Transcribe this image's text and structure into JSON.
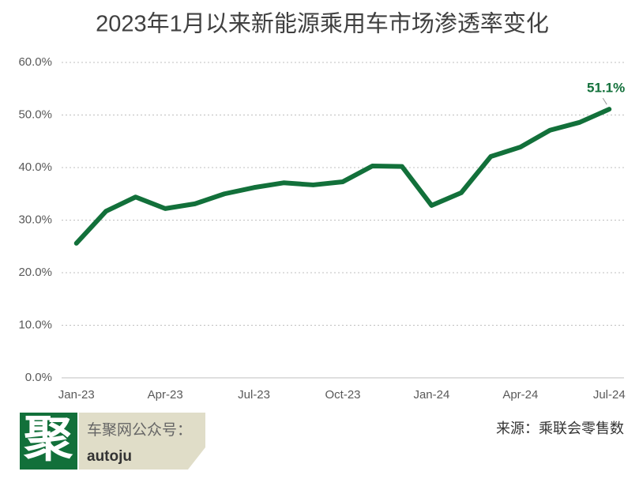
{
  "chart_data": {
    "type": "line",
    "title": "2023年1月以来新能源乘用车市场渗透率变化",
    "categories": [
      "Jan-23",
      null,
      null,
      "Apr-23",
      null,
      null,
      "Jul-23",
      null,
      null,
      "Oct-23",
      null,
      null,
      "Jan-24",
      null,
      null,
      "Apr-24",
      null,
      null,
      "Jul-24"
    ],
    "series": [
      {
        "name": "新能源乘用车市场渗透率",
        "color": "#12703a",
        "values": [
          25.6,
          31.7,
          34.4,
          32.2,
          33.1,
          35.0,
          36.2,
          37.1,
          36.7,
          37.3,
          40.3,
          40.2,
          32.8,
          35.2,
          42.1,
          43.9,
          47.1,
          48.6,
          51.1
        ],
        "value_labels": [
          null,
          null,
          null,
          null,
          null,
          null,
          null,
          null,
          null,
          null,
          null,
          null,
          null,
          null,
          null,
          null,
          null,
          null,
          "51.1%"
        ]
      }
    ],
    "ylim": [
      0,
      60
    ],
    "yticks": [
      {
        "value": 0,
        "label": "0.0%"
      },
      {
        "value": 10,
        "label": "10.0%"
      },
      {
        "value": 20,
        "label": "20.0%"
      },
      {
        "value": 30,
        "label": "30.0%"
      },
      {
        "value": 40,
        "label": "40.0%"
      },
      {
        "value": 50,
        "label": "50.0%"
      },
      {
        "value": 60,
        "label": "60.0%"
      }
    ],
    "grid": true,
    "logo": "聚",
    "brand_account": "车聚网公众号：",
    "brand_name": "autoju",
    "source": "来源：乘联会零售数"
  }
}
